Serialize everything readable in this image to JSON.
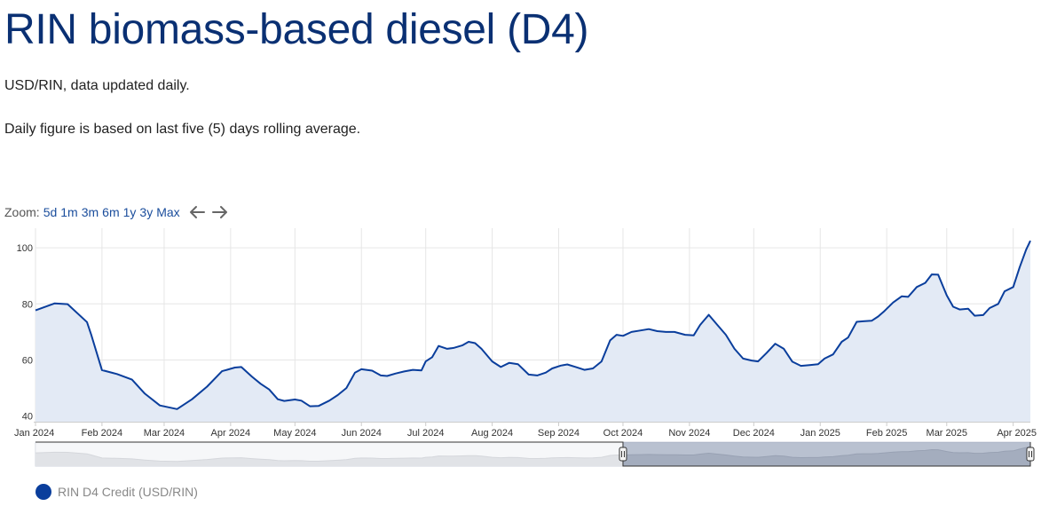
{
  "header": {
    "title": "RIN biomass-based diesel (D4)",
    "subtitle_1": "USD/RIN, data updated daily.",
    "subtitle_2": "Daily figure is based on last five (5) days rolling average."
  },
  "zoom": {
    "label": "Zoom:",
    "buttons": [
      "5d",
      "1m",
      "3m",
      "6m",
      "1y",
      "3y",
      "Max"
    ],
    "prev_icon": "arrow-left-icon",
    "next_icon": "arrow-right-icon"
  },
  "legend": {
    "label": "RIN D4 Credit (USD/RIN)",
    "color": "#0a3e9c"
  },
  "colors": {
    "line": "#0a3e9c",
    "area": "#e3eaf5",
    "grid": "#e6e6e6"
  },
  "chart_data": {
    "type": "area",
    "title": "RIN biomass-based diesel (D4)",
    "xlabel": "",
    "ylabel": "",
    "ylim": [
      38,
      107
    ],
    "yticks": [
      40,
      60,
      80,
      100
    ],
    "grid": true,
    "legend_position": "bottom-left",
    "navigator": true,
    "navigator_selection": [
      "2024-10-01",
      "2025-04-09"
    ],
    "xticks": [
      {
        "date": "2024-01-01",
        "label": "Jan 2024"
      },
      {
        "date": "2024-02-01",
        "label": "Feb 2024"
      },
      {
        "date": "2024-03-01",
        "label": "Mar 2024"
      },
      {
        "date": "2024-04-01",
        "label": "Apr 2024"
      },
      {
        "date": "2024-05-01",
        "label": "May 2024"
      },
      {
        "date": "2024-06-01",
        "label": "Jun 2024"
      },
      {
        "date": "2024-07-01",
        "label": "Jul 2024"
      },
      {
        "date": "2024-08-01",
        "label": "Aug 2024"
      },
      {
        "date": "2024-09-01",
        "label": "Sep 2024"
      },
      {
        "date": "2024-10-01",
        "label": "Oct 2024"
      },
      {
        "date": "2024-11-01",
        "label": "Nov 2024"
      },
      {
        "date": "2024-12-01",
        "label": "Dec 2024"
      },
      {
        "date": "2025-01-01",
        "label": "Jan 2025"
      },
      {
        "date": "2025-02-01",
        "label": "Feb 2025"
      },
      {
        "date": "2025-03-01",
        "label": "Mar 2025"
      },
      {
        "date": "2025-04-01",
        "label": "Apr 2025"
      }
    ],
    "series": [
      {
        "name": "RIN D4 Credit (USD/RIN)",
        "x": [
          "2024-01-01",
          "2024-01-10",
          "2024-01-16",
          "2024-01-25",
          "2024-01-27",
          "2024-02-01",
          "2024-02-08",
          "2024-02-15",
          "2024-02-21",
          "2024-02-28",
          "2024-03-07",
          "2024-03-14",
          "2024-03-21",
          "2024-03-28",
          "2024-04-03",
          "2024-04-06",
          "2024-04-11",
          "2024-04-15",
          "2024-04-19",
          "2024-04-23",
          "2024-04-26",
          "2024-05-01",
          "2024-05-04",
          "2024-05-08",
          "2024-05-12",
          "2024-05-17",
          "2024-05-21",
          "2024-05-25",
          "2024-05-29",
          "2024-06-01",
          "2024-06-06",
          "2024-06-10",
          "2024-06-13",
          "2024-06-17",
          "2024-06-21",
          "2024-06-25",
          "2024-06-29",
          "2024-07-01",
          "2024-07-04",
          "2024-07-07",
          "2024-07-11",
          "2024-07-14",
          "2024-07-18",
          "2024-07-21",
          "2024-07-24",
          "2024-07-27",
          "2024-08-01",
          "2024-08-05",
          "2024-08-09",
          "2024-08-13",
          "2024-08-18",
          "2024-08-22",
          "2024-08-26",
          "2024-08-29",
          "2024-09-02",
          "2024-09-05",
          "2024-09-09",
          "2024-09-13",
          "2024-09-17",
          "2024-09-21",
          "2024-09-25",
          "2024-09-28",
          "2024-10-01",
          "2024-10-05",
          "2024-10-09",
          "2024-10-13",
          "2024-10-17",
          "2024-10-21",
          "2024-10-25",
          "2024-10-30",
          "2024-11-03",
          "2024-11-06",
          "2024-11-10",
          "2024-11-14",
          "2024-11-18",
          "2024-11-22",
          "2024-11-26",
          "2024-11-30",
          "2024-12-03",
          "2024-12-07",
          "2024-12-11",
          "2024-12-15",
          "2024-12-19",
          "2024-12-23",
          "2024-12-27",
          "2024-12-31",
          "2025-01-03",
          "2025-01-07",
          "2025-01-11",
          "2025-01-14",
          "2025-01-18",
          "2025-01-21",
          "2025-01-25",
          "2025-01-28",
          "2025-01-31",
          "2025-02-04",
          "2025-02-08",
          "2025-02-11",
          "2025-02-15",
          "2025-02-19",
          "2025-02-22",
          "2025-02-25",
          "2025-03-01",
          "2025-03-04",
          "2025-03-07",
          "2025-03-11",
          "2025-03-14",
          "2025-03-18",
          "2025-03-21",
          "2025-03-25",
          "2025-03-28",
          "2025-04-01",
          "2025-04-04",
          "2025-04-07",
          "2025-04-09"
        ],
        "values": [
          77.7,
          80.2,
          79.9,
          73.5,
          69.0,
          56.4,
          55.0,
          53.0,
          48.0,
          43.8,
          42.5,
          46.0,
          50.5,
          56.0,
          57.3,
          57.5,
          54.0,
          51.5,
          49.5,
          46.0,
          45.4,
          45.9,
          45.5,
          43.5,
          43.6,
          45.5,
          47.5,
          50.0,
          55.5,
          56.7,
          56.2,
          54.5,
          54.3,
          55.2,
          55.9,
          56.5,
          56.3,
          59.5,
          61.0,
          65.0,
          64.0,
          64.3,
          65.2,
          66.5,
          66.0,
          64.0,
          59.5,
          57.5,
          59.0,
          58.5,
          54.8,
          54.5,
          55.5,
          57.0,
          58.0,
          58.4,
          57.5,
          56.5,
          57.0,
          59.5,
          67.0,
          69.0,
          68.6,
          70.0,
          70.5,
          71.0,
          70.3,
          70.0,
          70.0,
          69.0,
          68.8,
          72.5,
          76.1,
          72.5,
          69.0,
          64.0,
          60.5,
          59.8,
          59.5,
          62.5,
          65.8,
          64.0,
          59.4,
          57.9,
          58.2,
          58.5,
          60.5,
          62.0,
          66.5,
          68.0,
          73.6,
          73.8,
          74.0,
          75.5,
          77.5,
          80.5,
          82.7,
          82.5,
          86.0,
          87.5,
          90.5,
          90.4,
          83.0,
          79.0,
          78.0,
          78.3,
          75.8,
          76.0,
          78.5,
          80.0,
          84.5,
          86.0,
          93.0,
          99.3,
          102.5
        ]
      }
    ]
  }
}
